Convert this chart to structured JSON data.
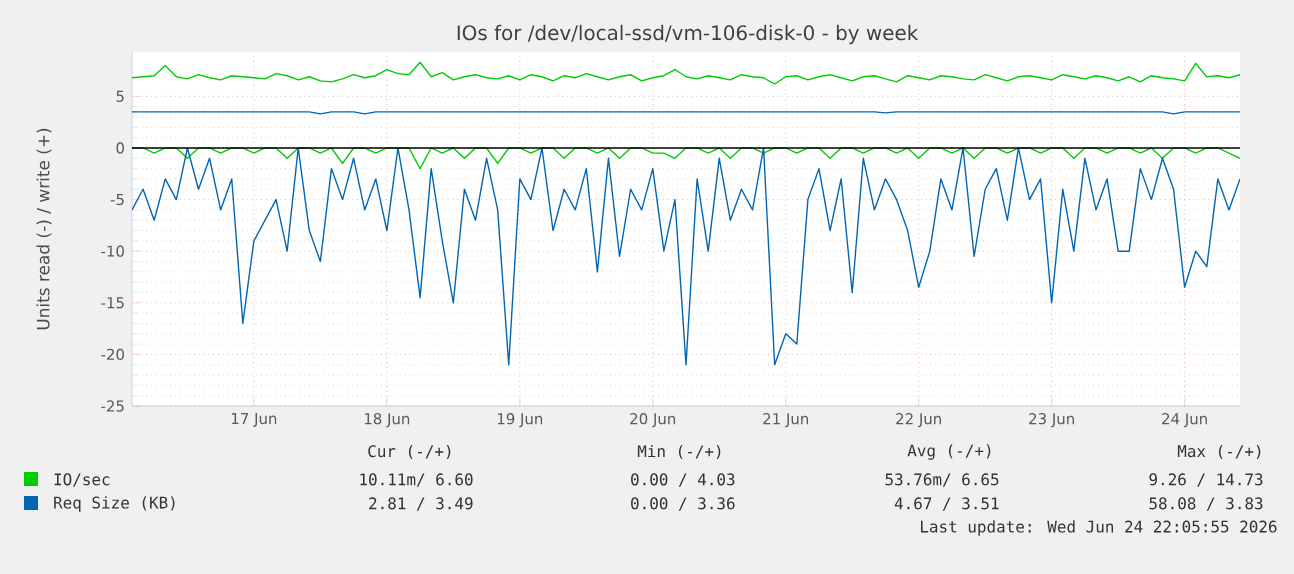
{
  "chart_data": {
    "type": "line",
    "title": "IOs for /dev/local-ssd/vm-106-disk-0 - by week",
    "ylabel": "Units read (-) / write (+)",
    "x": [
      "2026-06-16T14:00",
      "2026-06-16T16:00",
      "2026-06-16T18:00",
      "2026-06-16T20:00",
      "2026-06-16T22:00",
      "2026-06-17T00:00",
      "2026-06-17T02:00",
      "2026-06-17T04:00",
      "2026-06-17T06:00",
      "2026-06-17T08:00",
      "2026-06-17T10:00",
      "2026-06-17T12:00",
      "2026-06-17T14:00",
      "2026-06-17T16:00",
      "2026-06-17T18:00",
      "2026-06-17T20:00",
      "2026-06-17T22:00",
      "2026-06-18T00:00",
      "2026-06-18T02:00",
      "2026-06-18T04:00",
      "2026-06-18T06:00",
      "2026-06-18T08:00",
      "2026-06-18T10:00",
      "2026-06-18T12:00",
      "2026-06-18T14:00",
      "2026-06-18T16:00",
      "2026-06-18T18:00",
      "2026-06-18T20:00",
      "2026-06-18T22:00",
      "2026-06-19T00:00",
      "2026-06-19T02:00",
      "2026-06-19T04:00",
      "2026-06-19T06:00",
      "2026-06-19T08:00",
      "2026-06-19T10:00",
      "2026-06-19T12:00",
      "2026-06-19T14:00",
      "2026-06-19T16:00",
      "2026-06-19T18:00",
      "2026-06-19T20:00",
      "2026-06-19T22:00",
      "2026-06-20T00:00",
      "2026-06-20T02:00",
      "2026-06-20T04:00",
      "2026-06-20T06:00",
      "2026-06-20T08:00",
      "2026-06-20T10:00",
      "2026-06-20T12:00",
      "2026-06-20T14:00",
      "2026-06-20T16:00",
      "2026-06-20T18:00",
      "2026-06-20T20:00",
      "2026-06-20T22:00",
      "2026-06-21T00:00",
      "2026-06-21T02:00",
      "2026-06-21T04:00",
      "2026-06-21T06:00",
      "2026-06-21T08:00",
      "2026-06-21T10:00",
      "2026-06-21T12:00",
      "2026-06-21T14:00",
      "2026-06-21T16:00",
      "2026-06-21T18:00",
      "2026-06-21T20:00",
      "2026-06-21T22:00",
      "2026-06-22T00:00",
      "2026-06-22T02:00",
      "2026-06-22T04:00",
      "2026-06-22T06:00",
      "2026-06-22T08:00",
      "2026-06-22T10:00",
      "2026-06-22T12:00",
      "2026-06-22T14:00",
      "2026-06-22T16:00",
      "2026-06-22T18:00",
      "2026-06-22T20:00",
      "2026-06-22T22:00",
      "2026-06-23T00:00",
      "2026-06-23T02:00",
      "2026-06-23T04:00",
      "2026-06-23T06:00",
      "2026-06-23T08:00",
      "2026-06-23T10:00",
      "2026-06-23T12:00",
      "2026-06-23T14:00",
      "2026-06-23T16:00",
      "2026-06-23T18:00",
      "2026-06-23T20:00",
      "2026-06-23T22:00",
      "2026-06-24T00:00",
      "2026-06-24T02:00",
      "2026-06-24T04:00",
      "2026-06-24T06:00",
      "2026-06-24T08:00",
      "2026-06-24T10:00",
      "2026-06-24T12:00",
      "2026-06-24T14:00",
      "2026-06-24T16:00",
      "2026-06-24T18:00",
      "2026-06-24T20:00",
      "2026-06-24T22:00"
    ],
    "series": [
      {
        "name": "IO/sec",
        "color": "#00cc00",
        "values": [
          6.8,
          6.9,
          7.0,
          8.0,
          6.9,
          6.7,
          7.1,
          6.8,
          6.6,
          7.0,
          6.9,
          6.8,
          6.7,
          7.2,
          7.0,
          6.6,
          6.9,
          6.5,
          6.4,
          6.7,
          7.1,
          6.8,
          7.0,
          7.6,
          7.2,
          7.1,
          8.3,
          6.9,
          7.3,
          6.6,
          6.9,
          7.1,
          6.8,
          6.7,
          7.0,
          6.6,
          7.1,
          6.9,
          6.5,
          7.0,
          6.8,
          7.2,
          6.9,
          6.6,
          6.9,
          7.1,
          6.5,
          6.8,
          7.0,
          7.6,
          6.9,
          6.7,
          7.0,
          6.8,
          6.6,
          7.1,
          6.9,
          6.8,
          6.2,
          6.9,
          7.0,
          6.6,
          6.9,
          7.1,
          6.8,
          6.5,
          6.9,
          7.0,
          6.7,
          6.4,
          7.0,
          6.8,
          6.6,
          7.0,
          6.9,
          6.7,
          6.6,
          7.1,
          6.8,
          6.5,
          6.9,
          7.0,
          6.8,
          6.6,
          7.1,
          6.9,
          6.7,
          7.0,
          6.8,
          6.5,
          6.9,
          6.4,
          7.0,
          6.8,
          6.7,
          6.5,
          8.2,
          6.9,
          7.0,
          6.8,
          7.1
        ]
      },
      {
        "color": "#00cc00",
        "values": [
          0,
          0,
          -0.5,
          0,
          0,
          -1,
          0,
          0,
          -0.5,
          0,
          0,
          -0.5,
          0,
          0,
          -1,
          0,
          0,
          -0.5,
          0,
          -1.5,
          0,
          0,
          -0.5,
          0,
          0,
          0,
          -2,
          0,
          -0.5,
          0,
          -1,
          0,
          0,
          -1.5,
          0,
          0,
          -0.5,
          0,
          0,
          -1,
          0,
          0,
          -0.5,
          0,
          -1,
          0,
          0,
          -0.5,
          -0.5,
          -1,
          0,
          0,
          -0.5,
          0,
          -1,
          0,
          0,
          -0.5,
          0,
          0,
          -0.5,
          0,
          0,
          -1,
          0,
          0,
          -0.5,
          0,
          0,
          -0.5,
          0,
          -1,
          0,
          0,
          -0.5,
          0,
          -1,
          0,
          0,
          -0.5,
          0,
          0,
          -0.5,
          0,
          0,
          -1,
          0,
          0,
          -0.5,
          0,
          0,
          -0.5,
          0,
          -1,
          0,
          0,
          -0.5,
          0,
          0,
          -0.5,
          -1
        ]
      },
      {
        "name": "Req Size (KB)",
        "color": "#0066b3",
        "values": [
          -6,
          -4,
          -7,
          -3,
          -5,
          0,
          -4,
          -1,
          -6,
          -3,
          -17,
          -9,
          -7,
          -5,
          -10,
          0,
          -8,
          -11,
          -2,
          -5,
          -1,
          -6,
          -3,
          -8,
          0,
          -6,
          -14.5,
          -2,
          -9,
          -15,
          -4,
          -7,
          -1,
          -6,
          -21,
          -3,
          -5,
          0,
          -8,
          -4,
          -6,
          -2,
          -12,
          -1,
          -10.5,
          -4,
          -6,
          -2,
          -10,
          -5,
          -21,
          -3,
          -10,
          -1,
          -7,
          -4,
          -6,
          0,
          -21,
          -18,
          -19,
          -5,
          -2,
          -8,
          -3,
          -14,
          -1,
          -6,
          -3,
          -5,
          -8,
          -13.5,
          -10,
          -3,
          -6,
          0,
          -10.5,
          -4,
          -2,
          -7,
          0,
          -5,
          -3,
          -15,
          -4,
          -10,
          -1,
          -6,
          -3,
          -10,
          -10,
          -2,
          -5,
          -1,
          -4,
          -13.5,
          -10,
          -11.5,
          -3,
          -6,
          -3
        ]
      },
      {
        "color": "#0066b3",
        "values": [
          3.5,
          3.5,
          3.5,
          3.5,
          3.5,
          3.5,
          3.5,
          3.5,
          3.5,
          3.5,
          3.5,
          3.5,
          3.5,
          3.5,
          3.5,
          3.5,
          3.5,
          3.3,
          3.5,
          3.5,
          3.5,
          3.3,
          3.5,
          3.5,
          3.5,
          3.5,
          3.5,
          3.5,
          3.5,
          3.5,
          3.5,
          3.5,
          3.5,
          3.5,
          3.5,
          3.5,
          3.5,
          3.5,
          3.5,
          3.5,
          3.5,
          3.5,
          3.5,
          3.5,
          3.5,
          3.5,
          3.5,
          3.5,
          3.5,
          3.5,
          3.5,
          3.5,
          3.5,
          3.5,
          3.5,
          3.5,
          3.5,
          3.5,
          3.5,
          3.5,
          3.5,
          3.5,
          3.5,
          3.5,
          3.5,
          3.5,
          3.5,
          3.5,
          3.4,
          3.5,
          3.5,
          3.5,
          3.5,
          3.5,
          3.5,
          3.5,
          3.5,
          3.5,
          3.5,
          3.5,
          3.5,
          3.5,
          3.5,
          3.5,
          3.5,
          3.5,
          3.5,
          3.5,
          3.5,
          3.5,
          3.5,
          3.5,
          3.5,
          3.5,
          3.3,
          3.5,
          3.5,
          3.5,
          3.5,
          3.5,
          3.5
        ]
      }
    ],
    "xlim": [
      "2026-06-16T14:00",
      "2026-06-24T22:00"
    ],
    "xticks": [
      {
        "value": "2026-06-17T12:00",
        "label": "17 Jun"
      },
      {
        "value": "2026-06-18T12:00",
        "label": "18 Jun"
      },
      {
        "value": "2026-06-19T12:00",
        "label": "19 Jun"
      },
      {
        "value": "2026-06-20T12:00",
        "label": "20 Jun"
      },
      {
        "value": "2026-06-21T12:00",
        "label": "21 Jun"
      },
      {
        "value": "2026-06-22T12:00",
        "label": "22 Jun"
      },
      {
        "value": "2026-06-23T12:00",
        "label": "23 Jun"
      },
      {
        "value": "2026-06-24T12:00",
        "label": "24 Jun"
      }
    ],
    "ylim": [
      -25,
      9.3
    ],
    "yticks": [
      -25,
      -20,
      -15,
      -10,
      -5,
      0,
      5
    ],
    "ref_lines": [
      {
        "axis": "y",
        "value": 0,
        "color": "#000000"
      }
    ],
    "grid": true,
    "legend": "bottom",
    "line_style": "solid",
    "annotations": [
      "Cur (-/+)",
      "Min (-/+)",
      "Avg (-/+)",
      "Max (-/+)",
      "10.11m/ 6.60",
      "0.00 / 4.03",
      "53.76m/ 6.65",
      "9.26 / 14.73",
      "2.81 / 3.49",
      "0.00 / 3.36",
      "4.67 / 3.51",
      "58.08 / 3.83",
      "Last update: Wed Jun 24 22:05:55 2026"
    ]
  }
}
